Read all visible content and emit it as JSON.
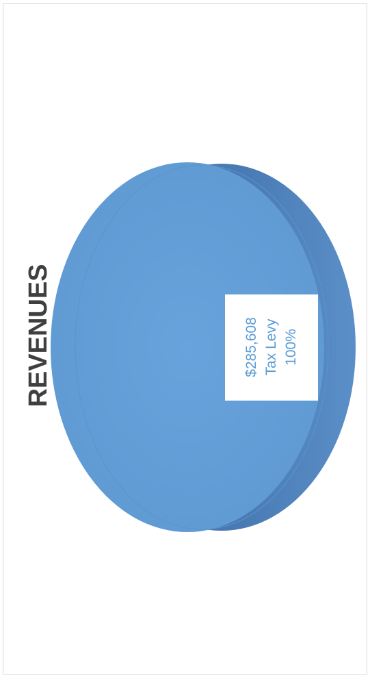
{
  "chart_data": {
    "type": "pie",
    "title": "REVENUES",
    "slices": [
      {
        "value_label": "$285,608",
        "category": "Tax Levy",
        "percent_label": "100%",
        "value": 285608,
        "percent": 100
      }
    ],
    "colors": {
      "slice_top": "#649fd8",
      "slice_side": "#4a7bb4",
      "slice_edge": "#3c6796",
      "title": "#3f3f3f",
      "label_text": "#5b9bd5",
      "label_box": "#ffffff"
    },
    "three_d": true,
    "legend": "none"
  }
}
